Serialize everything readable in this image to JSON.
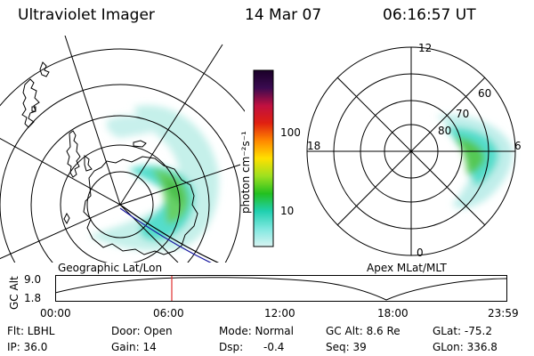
{
  "header": {
    "instrument": "Ultraviolet Imager",
    "date": "14 Mar 07",
    "time": "06:16:57 UT"
  },
  "geo_panel": {
    "label": "Geographic Lat/Lon"
  },
  "mag_panel": {
    "label": "Apex MLat/MLT",
    "mlt_labels": {
      "top": "12",
      "left": "18",
      "right": "6",
      "bottom": "0"
    },
    "lat_labels": [
      "60",
      "70",
      "80"
    ]
  },
  "colorbar": {
    "unit_label": "photon cm⁻²s⁻¹",
    "ticks": [
      "100",
      "10"
    ]
  },
  "altitude_plot": {
    "ylabel": "GC Alt",
    "ytick_labels": [
      "9.0",
      "1.8"
    ],
    "xtick_labels": [
      "00:00",
      "06:00",
      "12:00",
      "18:00",
      "23:59"
    ],
    "current_time_marker_color": "#e03030"
  },
  "status": {
    "flt": "Flt: LBHL",
    "ip": "IP: 36.0",
    "door": "Door: Open",
    "gain": "Gain: 14",
    "mode": "Mode: Normal",
    "dsp_label": "Dsp:",
    "dsp_value": "-0.4",
    "gc_alt": "GC Alt: 8.6 Re",
    "seq": "Seq: 39",
    "glat": "GLat: -75.2",
    "glon": "GLon: 336.8"
  }
}
